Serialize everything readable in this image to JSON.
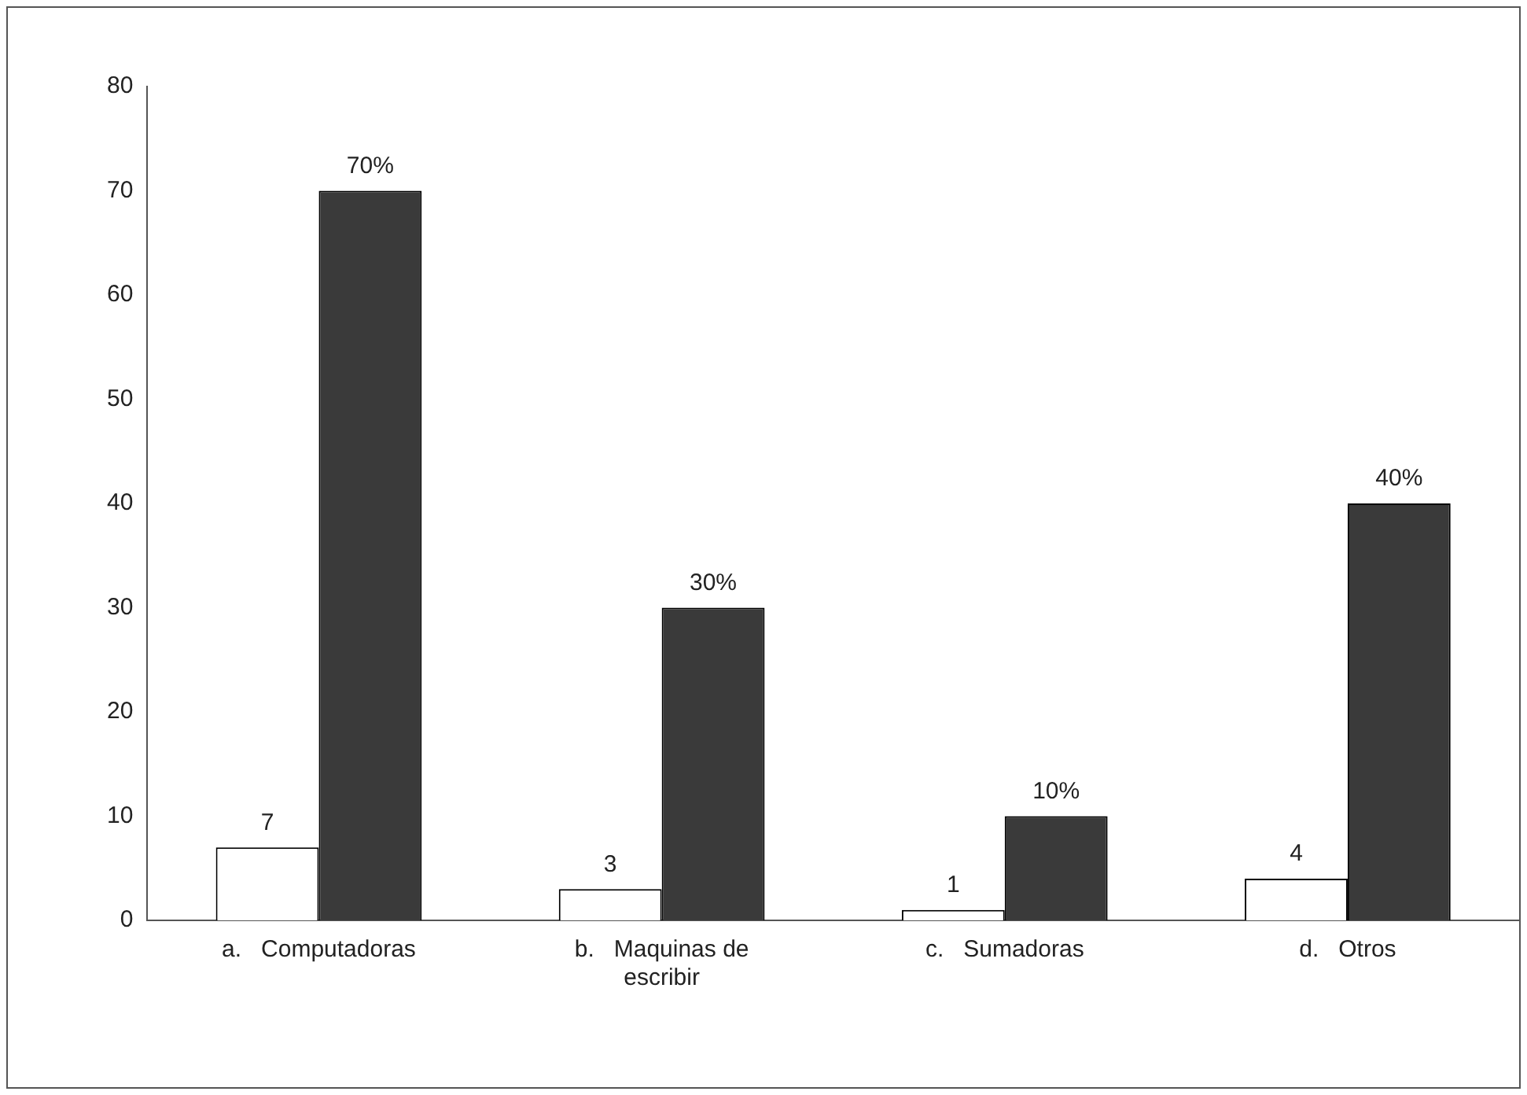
{
  "chart_data": {
    "type": "bar",
    "categories": [
      "a.   Computadoras",
      "b.   Maquinas de escribir",
      "c.   Sumadoras",
      "d.   Otros"
    ],
    "series": [
      {
        "color": "#ffffff",
        "values": [
          7,
          3,
          1,
          4
        ],
        "value_labels": [
          "7",
          "3",
          "1",
          "4"
        ]
      },
      {
        "color": "#3a3a3a",
        "values": [
          70,
          30,
          10,
          40
        ],
        "value_labels": [
          "70%",
          "30%",
          "10%",
          "40%"
        ]
      }
    ],
    "ylim": [
      0,
      80
    ],
    "yticks": [
      0,
      10,
      20,
      30,
      40,
      50,
      60,
      70,
      80
    ],
    "grid": false,
    "legend": false
  }
}
